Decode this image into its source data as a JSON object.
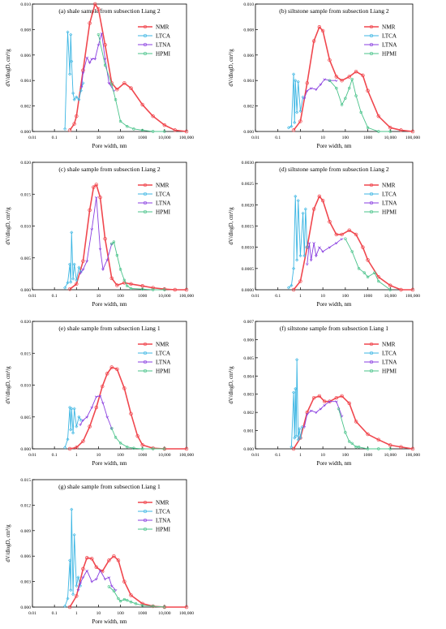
{
  "legend_labels": [
    "NMR",
    "LTCA",
    "LTNA",
    "HPMI"
  ],
  "colors": {
    "NMR": "#f0474e",
    "LTCA": "#3cb6e3",
    "LTNA": "#8a3fe0",
    "HPMI": "#49c38a"
  },
  "chart_data": [
    {
      "type": "line",
      "title": "(a) shale sample from subsection Liang 2",
      "xlabel": "Pore width, nm",
      "ylabel": "dV/dlogD, cm³/g",
      "xscale": "log",
      "xlim": [
        0.01,
        100000
      ],
      "xticks": [
        "0.01",
        "0.1",
        "1",
        "10",
        "100",
        "1000",
        "10,000",
        "100,000"
      ],
      "ylim": [
        0,
        0.01
      ],
      "yticks": [
        "0.000",
        "0.002",
        "0.004",
        "0.006",
        "0.008",
        "0.010"
      ],
      "legend_position": "top-right",
      "series": [
        {
          "name": "NMR",
          "x": [
            0.5,
            0.8,
            1,
            2,
            4,
            7,
            10,
            20,
            40,
            70,
            150,
            300,
            1000,
            3000,
            10000,
            30000,
            100000
          ],
          "y": [
            0.0001,
            0.0006,
            0.0012,
            0.0048,
            0.0085,
            0.01,
            0.0096,
            0.0068,
            0.0038,
            0.0033,
            0.0038,
            0.0034,
            0.0021,
            0.0012,
            0.0005,
            0.0001,
            0.0
          ]
        },
        {
          "name": "LTCA",
          "x": [
            0.3,
            0.4,
            0.5,
            0.55,
            0.6,
            0.7,
            0.8,
            1,
            1.3,
            1.6,
            2
          ],
          "y": [
            0.0002,
            0.0078,
            0.0045,
            0.0076,
            0.0055,
            0.003,
            0.0025,
            0.0027,
            0.0025,
            0.0032,
            0.0038
          ]
        },
        {
          "name": "LTNA",
          "x": [
            1.7,
            2,
            3,
            4,
            5,
            7,
            10,
            14,
            20,
            30,
            50
          ],
          "y": [
            0.0035,
            0.0046,
            0.0058,
            0.0054,
            0.0057,
            0.0057,
            0.0068,
            0.0077,
            0.0057,
            0.0038,
            0.0032
          ]
        },
        {
          "name": "HPMI",
          "x": [
            10,
            20,
            40,
            60,
            100,
            200,
            400,
            1000,
            3000,
            10000
          ],
          "y": [
            0.0076,
            0.0052,
            0.0037,
            0.0025,
            0.0008,
            0.0004,
            0.0002,
            0.0001,
            0.0,
            0.0
          ]
        }
      ]
    },
    {
      "type": "line",
      "title": "(b) siltstone sample from subsection Liang 2",
      "xlabel": "Pore width, nm",
      "ylabel": "dV/dlogD, cm³/g",
      "xscale": "log",
      "xlim": [
        0.01,
        100000
      ],
      "xticks": [
        "0.01",
        "0.1",
        "1",
        "10",
        "100",
        "1000",
        "10,000",
        "100,000"
      ],
      "ylim": [
        0,
        0.01
      ],
      "yticks": [
        "0.000",
        "0.002",
        "0.004",
        "0.006",
        "0.008",
        "0.010"
      ],
      "legend_position": "top-right",
      "series": [
        {
          "name": "NMR",
          "x": [
            0.5,
            1,
            2,
            4,
            7,
            10,
            20,
            40,
            70,
            150,
            300,
            600,
            1000,
            3000,
            10000,
            30000,
            100000
          ],
          "y": [
            0.0001,
            0.0008,
            0.0038,
            0.0071,
            0.0082,
            0.0079,
            0.0056,
            0.0043,
            0.004,
            0.0043,
            0.0047,
            0.0044,
            0.0032,
            0.0012,
            0.0003,
            0.0001,
            0.0
          ]
        },
        {
          "name": "LTCA",
          "x": [
            0.3,
            0.4,
            0.5,
            0.55,
            0.6,
            0.7,
            0.8,
            1,
            1.3
          ],
          "y": [
            0.0003,
            0.0004,
            0.0045,
            0.0007,
            0.004,
            0.0015,
            0.0039,
            0.0016,
            0.0027
          ]
        },
        {
          "name": "LTNA",
          "x": [
            1.5,
            2,
            3,
            5,
            8,
            12,
            20,
            40
          ],
          "y": [
            0.0026,
            0.0032,
            0.0034,
            0.0033,
            0.0037,
            0.0041,
            0.004,
            0.004
          ]
        },
        {
          "name": "HPMI",
          "x": [
            20,
            40,
            70,
            100,
            150,
            200,
            300,
            500,
            1000,
            3000,
            10000
          ],
          "y": [
            0.004,
            0.0034,
            0.0021,
            0.0026,
            0.0034,
            0.0041,
            0.0028,
            0.0015,
            0.0003,
            0.0,
            0.0
          ]
        }
      ]
    },
    {
      "type": "line",
      "title": "(c) shale sample from subsection Liang 2",
      "xlabel": "Pore width, nm",
      "ylabel": "dV/dlogD, cm³/g",
      "xscale": "log",
      "xlim": [
        0.01,
        100000
      ],
      "xticks": [
        "0.01",
        "0.1",
        "1",
        "10",
        "100",
        "1000",
        "10,000",
        "100,000"
      ],
      "ylim": [
        0,
        0.02
      ],
      "yticks": [
        "0.000",
        "0.005",
        "0.010",
        "0.015",
        "0.020"
      ],
      "legend_position": "top-right",
      "series": [
        {
          "name": "NMR",
          "x": [
            0.5,
            1,
            2,
            4,
            6,
            8,
            12,
            20,
            40,
            70,
            150,
            300,
            1000,
            3000,
            10000,
            30000,
            100000
          ],
          "y": [
            0.0001,
            0.0009,
            0.0045,
            0.0125,
            0.0161,
            0.0165,
            0.0145,
            0.008,
            0.0018,
            0.0007,
            0.0011,
            0.0009,
            0.0006,
            0.0003,
            0.0001,
            0.0,
            0.0
          ]
        },
        {
          "name": "LTCA",
          "x": [
            0.3,
            0.4,
            0.5,
            0.55,
            0.6,
            0.7,
            0.8,
            1,
            1.3,
            1.6
          ],
          "y": [
            0.0003,
            0.0011,
            0.004,
            0.0012,
            0.009,
            0.0017,
            0.004,
            0.0015,
            0.0035,
            0.0028
          ]
        },
        {
          "name": "LTNA",
          "x": [
            1.5,
            2,
            3,
            5,
            8,
            12,
            16,
            25,
            40
          ],
          "y": [
            0.0026,
            0.0032,
            0.0045,
            0.0095,
            0.0145,
            0.0064,
            0.0032,
            0.0047,
            0.0072
          ]
        },
        {
          "name": "HPMI",
          "x": [
            40,
            50,
            70,
            100,
            150,
            200,
            300,
            1000,
            3000,
            10000
          ],
          "y": [
            0.0072,
            0.0075,
            0.0054,
            0.0032,
            0.0015,
            0.0006,
            0.0002,
            0.0001,
            0.0,
            0.0
          ]
        }
      ]
    },
    {
      "type": "line",
      "title": "(d) siltstone sample from subsection Liang 2",
      "xlabel": "Pore width, nm",
      "ylabel": "dV/dlogD, cm³/g",
      "xscale": "log",
      "xlim": [
        0.01,
        100000
      ],
      "xticks": [
        "0.01",
        "0.1",
        "1",
        "10",
        "100",
        "1000",
        "10,000",
        "100,000"
      ],
      "ylim": [
        0,
        0.003
      ],
      "yticks": [
        "0.0000",
        "0.0005",
        "0.0010",
        "0.0015",
        "0.0020",
        "0.0025",
        "0.0030"
      ],
      "legend_position": "top-right",
      "series": [
        {
          "name": "NMR",
          "x": [
            0.5,
            1,
            2,
            4,
            7,
            10,
            20,
            40,
            70,
            150,
            300,
            600,
            1000,
            3000,
            10000,
            30000,
            100000
          ],
          "y": [
            0.0,
            0.0002,
            0.001,
            0.0019,
            0.0022,
            0.0021,
            0.0016,
            0.0013,
            0.0013,
            0.0014,
            0.0013,
            0.001,
            0.0007,
            0.0003,
            0.0001,
            0.0,
            0.0
          ]
        },
        {
          "name": "LTCA",
          "x": [
            0.3,
            0.4,
            0.5,
            0.6,
            0.7,
            0.8,
            1,
            1.3,
            1.5,
            1.7,
            2
          ],
          "y": [
            5e-05,
            0.0001,
            0.0005,
            0.0022,
            0.0007,
            0.0021,
            0.0008,
            0.0018,
            0.0008,
            0.0019,
            0.001
          ]
        },
        {
          "name": "LTNA",
          "x": [
            2,
            2.5,
            3,
            4,
            5,
            7,
            10,
            20,
            40,
            70
          ],
          "y": [
            0.0006,
            0.0011,
            0.0007,
            0.0011,
            0.0008,
            0.001,
            0.0009,
            0.001,
            0.0011,
            0.0012
          ]
        },
        {
          "name": "HPMI",
          "x": [
            100,
            200,
            400,
            700,
            1000,
            2000,
            3000,
            10000
          ],
          "y": [
            0.0012,
            0.0009,
            0.0005,
            0.0004,
            0.0003,
            0.0004,
            0.0002,
            0.0
          ]
        }
      ]
    },
    {
      "type": "line",
      "title": "(e) shale sample from subsection Liang 1",
      "xlabel": "Pore width, nm",
      "ylabel": "dV/dlogD, cm³/g",
      "xscale": "log",
      "xlim": [
        0.01,
        100000
      ],
      "xticks": [
        "0.01",
        "0.1",
        "1",
        "10",
        "100",
        "1000",
        "10,000",
        "100,000"
      ],
      "ylim": [
        0,
        0.02
      ],
      "yticks": [
        "0.000",
        "0.005",
        "0.010",
        "0.015",
        "0.020"
      ],
      "legend_position": "top-right",
      "series": [
        {
          "name": "NMR",
          "x": [
            0.5,
            1,
            2,
            4,
            8,
            15,
            25,
            40,
            70,
            150,
            300,
            600,
            1000,
            3000,
            10000,
            100000
          ],
          "y": [
            0.0,
            0.0002,
            0.0012,
            0.0035,
            0.0065,
            0.0098,
            0.0118,
            0.0128,
            0.0125,
            0.0095,
            0.0055,
            0.002,
            0.0006,
            0.0001,
            0.0,
            0.0
          ]
        },
        {
          "name": "LTCA",
          "x": [
            0.3,
            0.4,
            0.5,
            0.55,
            0.6,
            0.7,
            0.8,
            1,
            1.3,
            1.6
          ],
          "y": [
            0.0002,
            0.0015,
            0.0065,
            0.003,
            0.0063,
            0.0025,
            0.0063,
            0.0035,
            0.005,
            0.0045
          ]
        },
        {
          "name": "LTNA",
          "x": [
            1.5,
            2,
            3,
            5,
            8,
            12,
            16,
            25,
            40
          ],
          "y": [
            0.0038,
            0.0045,
            0.005,
            0.0065,
            0.0082,
            0.0083,
            0.0072,
            0.005,
            0.0032
          ]
        },
        {
          "name": "HPMI",
          "x": [
            40,
            60,
            100,
            200,
            400,
            1000,
            3000,
            10000
          ],
          "y": [
            0.0032,
            0.0018,
            0.0009,
            0.0003,
            0.0001,
            0.0,
            0.0,
            0.0
          ]
        }
      ]
    },
    {
      "type": "line",
      "title": "(f) siltstone sample from subsection Liang 1",
      "xlabel": "Pore width, nm",
      "ylabel": "dV/dlogD, cm³/g",
      "xscale": "log",
      "xlim": [
        0.01,
        100000
      ],
      "xticks": [
        "0.01",
        "0.1",
        "1",
        "10",
        "100",
        "1000",
        "10,000",
        "100,000"
      ],
      "ylim": [
        0,
        0.007
      ],
      "yticks": [
        "0.000",
        "0.001",
        "0.002",
        "0.003",
        "0.004",
        "0.005",
        "0.006",
        "0.007"
      ],
      "legend_position": "top-right",
      "series": [
        {
          "name": "NMR",
          "x": [
            0.5,
            1,
            2,
            4,
            7,
            12,
            20,
            40,
            70,
            150,
            300,
            1000,
            3000,
            10000,
            30000,
            100000
          ],
          "y": [
            0.0,
            0.0006,
            0.002,
            0.0028,
            0.0029,
            0.0026,
            0.0026,
            0.0028,
            0.0029,
            0.0025,
            0.0015,
            0.0008,
            0.0005,
            0.0002,
            0.0001,
            0.0
          ]
        },
        {
          "name": "LTCA",
          "x": [
            0.4,
            0.5,
            0.55,
            0.6,
            0.65,
            0.7,
            0.8,
            0.9,
            1,
            1.2
          ],
          "y": [
            0.0001,
            0.0031,
            0.0006,
            0.0033,
            0.0007,
            0.0049,
            0.0005,
            0.0011,
            0.0006,
            0.0012
          ]
        },
        {
          "name": "LTNA",
          "x": [
            1.5,
            2,
            3,
            5,
            8,
            12,
            20,
            40,
            70
          ],
          "y": [
            0.0012,
            0.0019,
            0.0021,
            0.002,
            0.0022,
            0.0024,
            0.0026,
            0.0026,
            0.0018
          ]
        },
        {
          "name": "HPMI",
          "x": [
            50,
            100,
            150,
            200,
            300,
            400,
            1000,
            3000,
            10000
          ],
          "y": [
            0.0022,
            0.0009,
            0.0004,
            0.0003,
            0.0001,
            0.0001,
            0.0,
            0.0,
            0.0
          ]
        }
      ]
    },
    {
      "type": "line",
      "title": "(g) shale sample from subsection Liang 1",
      "xlabel": "Pore width, nm",
      "ylabel": "dV/dlogD, cm³/g",
      "xscale": "log",
      "xlim": [
        0.01,
        100000
      ],
      "xticks": [
        "0.01",
        "0.1",
        "1",
        "10",
        "100",
        "1000",
        "10,000",
        "100,000"
      ],
      "ylim": [
        0,
        0.015
      ],
      "yticks": [
        "0.000",
        "0.003",
        "0.006",
        "0.009",
        "0.012",
        "0.015"
      ],
      "legend_position": "top-right",
      "series": [
        {
          "name": "NMR",
          "x": [
            0.5,
            1,
            2,
            3,
            5,
            8,
            15,
            30,
            50,
            80,
            150,
            300,
            1000,
            3000,
            10000,
            100000
          ],
          "y": [
            0.0,
            0.0013,
            0.0045,
            0.0058,
            0.0057,
            0.0047,
            0.0042,
            0.0055,
            0.006,
            0.0055,
            0.003,
            0.0014,
            0.0004,
            0.0001,
            0.0,
            0.0
          ]
        },
        {
          "name": "LTCA",
          "x": [
            0.3,
            0.4,
            0.5,
            0.55,
            0.6,
            0.7,
            0.8,
            1,
            1.2,
            1.5
          ],
          "y": [
            0.0001,
            0.001,
            0.0055,
            0.002,
            0.0115,
            0.0015,
            0.0085,
            0.0025,
            0.0035,
            0.0025
          ]
        },
        {
          "name": "LTNA",
          "x": [
            1.2,
            1.5,
            2,
            3,
            5,
            8,
            12,
            20,
            30,
            40,
            60
          ],
          "y": [
            0.002,
            0.0028,
            0.0035,
            0.0043,
            0.003,
            0.0033,
            0.0043,
            0.0033,
            0.0035,
            0.0025,
            0.002
          ]
        },
        {
          "name": "HPMI",
          "x": [
            30,
            50,
            80,
            100,
            150,
            200,
            300,
            500,
            1000,
            3000,
            10000
          ],
          "y": [
            0.0024,
            0.0019,
            0.001,
            0.0007,
            0.0009,
            0.0008,
            0.0006,
            0.0004,
            0.0002,
            0.0001,
            0.0
          ]
        }
      ]
    }
  ]
}
